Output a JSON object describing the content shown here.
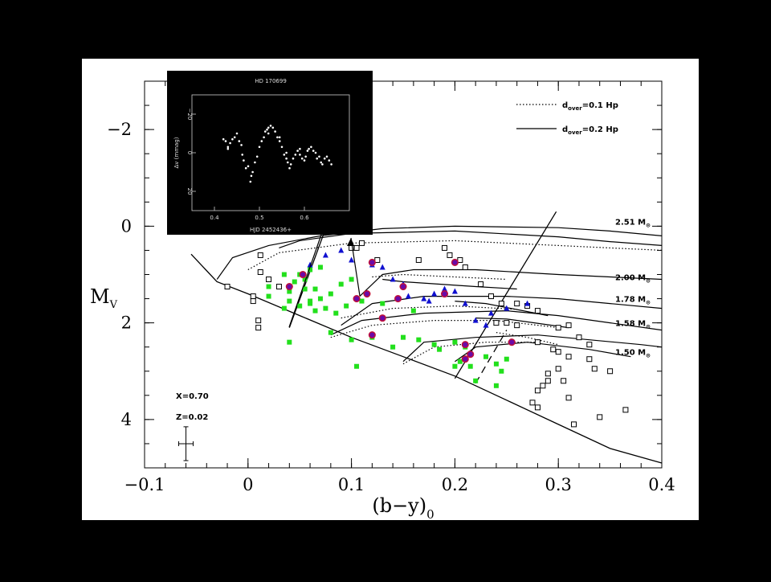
{
  "chart_data": {
    "type": "scatter",
    "xlabel": "(b−y)",
    "xlabel_sub": "0",
    "ylabel": "M",
    "ylabel_sub": "V",
    "xlim": [
      -0.1,
      0.4
    ],
    "ylim": [
      5,
      -3
    ],
    "xticks": [
      {
        "v": -0.1,
        "label": "−0.1"
      },
      {
        "v": 0,
        "label": "0"
      },
      {
        "v": 0.1,
        "label": "0.1"
      },
      {
        "v": 0.2,
        "label": "0.2"
      },
      {
        "v": 0.3,
        "label": "0.3"
      },
      {
        "v": 0.4,
        "label": "0.4"
      }
    ],
    "yticks": [
      {
        "v": -2,
        "label": "−2"
      },
      {
        "v": 0,
        "label": "0"
      },
      {
        "v": 2,
        "label": "2"
      },
      {
        "v": 4,
        "label": "4"
      }
    ],
    "legend": [
      {
        "style": "dotted",
        "label": "d",
        "sub": "over",
        "rest": "=0.1 Hp"
      },
      {
        "style": "solid",
        "label": "d",
        "sub": "over",
        "rest": "=0.2 Hp"
      }
    ],
    "annotations": {
      "X": "X=0.70",
      "Z": "Z=0.02",
      "errorbar": {
        "x": -0.06,
        "y": 4.5,
        "dx": 0.007,
        "dy": 0.35
      }
    },
    "track_labels": [
      {
        "x": 0.38,
        "y": -0.1,
        "mass": "2.51",
        "unit": "M",
        "sym": "⊙"
      },
      {
        "x": 0.38,
        "y": 1.05,
        "mass": "2.00",
        "unit": "M",
        "sym": "⊙"
      },
      {
        "x": 0.38,
        "y": 1.5,
        "mass": "1.78",
        "unit": "M",
        "sym": "⊙"
      },
      {
        "x": 0.38,
        "y": 2.0,
        "mass": "1.58",
        "unit": "M",
        "sym": "⊙"
      },
      {
        "x": 0.38,
        "y": 2.6,
        "mass": "1.50",
        "unit": "M",
        "sym": "⊙"
      }
    ],
    "zams_line": [
      [
        -0.055,
        0.58
      ],
      [
        -0.03,
        1.15
      ],
      [
        0.0,
        1.4
      ],
      [
        0.05,
        1.85
      ],
      [
        0.1,
        2.3
      ],
      [
        0.15,
        2.7
      ],
      [
        0.2,
        3.1
      ],
      [
        0.25,
        3.6
      ],
      [
        0.3,
        4.1
      ],
      [
        0.35,
        4.6
      ],
      [
        0.4,
        4.9
      ]
    ],
    "instability_strip": [
      {
        "points": [
          [
            0.04,
            2.1
          ],
          [
            0.075,
            0.05
          ]
        ],
        "style": "solid"
      },
      {
        "points": [
          [
            0.2,
            3.15
          ],
          [
            0.298,
            -0.3
          ]
        ],
        "style": "solid"
      },
      {
        "points": [
          [
            0.22,
            3.25
          ],
          [
            0.25,
            2.15
          ]
        ],
        "style": "dashed"
      }
    ],
    "tracks_solid": [
      [
        [
          -0.03,
          1.1
        ],
        [
          -0.015,
          0.65
        ],
        [
          0.02,
          0.4
        ],
        [
          0.07,
          0.2
        ],
        [
          0.13,
          0.05
        ],
        [
          0.2,
          0.0
        ],
        [
          0.3,
          0.03
        ],
        [
          0.35,
          0.1
        ],
        [
          0.4,
          0.2
        ]
      ],
      [
        [
          0.03,
          0.45
        ],
        [
          0.05,
          0.3
        ],
        [
          0.1,
          0.15
        ],
        [
          0.2,
          0.1
        ],
        [
          0.3,
          0.22
        ],
        [
          0.35,
          0.32
        ],
        [
          0.4,
          0.4
        ]
      ],
      [
        [
          0.108,
          1.45
        ],
        [
          0.13,
          1.0
        ],
        [
          0.16,
          0.9
        ],
        [
          0.22,
          0.9
        ],
        [
          0.3,
          1.0
        ],
        [
          0.35,
          1.05
        ],
        [
          0.4,
          1.1
        ]
      ],
      [
        [
          0.13,
          1.1
        ],
        [
          0.15,
          1.15
        ],
        [
          0.22,
          1.25
        ],
        [
          0.26,
          1.3
        ]
      ],
      [
        [
          0.09,
          2.05
        ],
        [
          0.12,
          1.6
        ],
        [
          0.17,
          1.45
        ],
        [
          0.25,
          1.45
        ],
        [
          0.3,
          1.5
        ],
        [
          0.35,
          1.6
        ],
        [
          0.4,
          1.7
        ]
      ],
      [
        [
          0.2,
          1.55
        ],
        [
          0.23,
          1.6
        ],
        [
          0.29,
          1.85
        ]
      ],
      [
        [
          0.08,
          2.25
        ],
        [
          0.11,
          1.95
        ],
        [
          0.17,
          1.8
        ],
        [
          0.25,
          1.75
        ],
        [
          0.3,
          1.85
        ],
        [
          0.35,
          2.0
        ],
        [
          0.4,
          2.15
        ]
      ],
      [
        [
          0.22,
          1.9
        ],
        [
          0.25,
          1.92
        ],
        [
          0.31,
          2.1
        ]
      ],
      [
        [
          0.15,
          2.8
        ],
        [
          0.17,
          2.4
        ],
        [
          0.22,
          2.3
        ],
        [
          0.28,
          2.25
        ],
        [
          0.33,
          2.35
        ],
        [
          0.38,
          2.45
        ],
        [
          0.4,
          2.5
        ]
      ],
      [
        [
          0.2,
          2.8
        ],
        [
          0.22,
          2.5
        ],
        [
          0.27,
          2.4
        ],
        [
          0.33,
          2.55
        ],
        [
          0.37,
          2.7
        ]
      ]
    ],
    "tracks_dotted": [
      [
        [
          0.0,
          0.9
        ],
        [
          0.03,
          0.55
        ],
        [
          0.1,
          0.35
        ],
        [
          0.2,
          0.3
        ],
        [
          0.3,
          0.4
        ],
        [
          0.4,
          0.5
        ]
      ],
      [
        [
          0.12,
          1.05
        ],
        [
          0.15,
          1.0
        ],
        [
          0.2,
          1.05
        ],
        [
          0.25,
          1.1
        ]
      ],
      [
        [
          0.09,
          1.9
        ],
        [
          0.14,
          1.7
        ],
        [
          0.2,
          1.65
        ],
        [
          0.26,
          1.72
        ]
      ],
      [
        [
          0.08,
          2.3
        ],
        [
          0.12,
          2.05
        ],
        [
          0.18,
          1.95
        ],
        [
          0.24,
          1.95
        ],
        [
          0.3,
          2.1
        ]
      ],
      [
        [
          0.15,
          2.85
        ],
        [
          0.18,
          2.5
        ],
        [
          0.23,
          2.4
        ],
        [
          0.28,
          2.4
        ]
      ],
      [
        [
          0.24,
          2.2
        ],
        [
          0.27,
          2.3
        ],
        [
          0.3,
          2.45
        ]
      ]
    ],
    "series": [
      {
        "marker": "open-square",
        "points": [
          [
            -0.02,
            1.25
          ],
          [
            0.005,
            1.45
          ],
          [
            0.005,
            1.55
          ],
          [
            0.01,
            1.95
          ],
          [
            0.01,
            2.1
          ],
          [
            0.012,
            0.95
          ],
          [
            0.02,
            1.1
          ],
          [
            0.03,
            1.25
          ],
          [
            0.012,
            0.6
          ],
          [
            0.1,
            0.45
          ],
          [
            0.105,
            0.45
          ],
          [
            0.11,
            0.35
          ],
          [
            0.125,
            0.7
          ],
          [
            0.165,
            0.7
          ],
          [
            0.19,
            0.45
          ],
          [
            0.195,
            0.6
          ],
          [
            0.205,
            0.7
          ],
          [
            0.21,
            0.85
          ],
          [
            0.225,
            1.2
          ],
          [
            0.235,
            1.45
          ],
          [
            0.245,
            1.6
          ],
          [
            0.26,
            1.6
          ],
          [
            0.27,
            1.65
          ],
          [
            0.28,
            1.75
          ],
          [
            0.24,
            2.0
          ],
          [
            0.25,
            2.0
          ],
          [
            0.28,
            2.4
          ],
          [
            0.295,
            2.55
          ],
          [
            0.3,
            2.1
          ],
          [
            0.31,
            2.05
          ],
          [
            0.31,
            2.7
          ],
          [
            0.3,
            2.95
          ],
          [
            0.29,
            3.05
          ],
          [
            0.29,
            3.2
          ],
          [
            0.285,
            3.3
          ],
          [
            0.305,
            3.2
          ],
          [
            0.31,
            3.55
          ],
          [
            0.275,
            3.65
          ],
          [
            0.28,
            3.75
          ],
          [
            0.32,
            2.3
          ],
          [
            0.33,
            2.45
          ],
          [
            0.33,
            2.75
          ],
          [
            0.335,
            2.95
          ],
          [
            0.35,
            3.0
          ],
          [
            0.34,
            3.95
          ],
          [
            0.315,
            4.1
          ],
          [
            0.365,
            3.8
          ],
          [
            0.3,
            2.6
          ],
          [
            0.28,
            3.4
          ],
          [
            0.26,
            2.05
          ]
        ]
      },
      {
        "marker": "green-square",
        "points": [
          [
            0.02,
            1.25
          ],
          [
            0.035,
            1.0
          ],
          [
            0.04,
            1.35
          ],
          [
            0.04,
            1.55
          ],
          [
            0.045,
            1.15
          ],
          [
            0.05,
            1.0
          ],
          [
            0.055,
            1.1
          ],
          [
            0.06,
            0.9
          ],
          [
            0.065,
            1.3
          ],
          [
            0.07,
            1.5
          ],
          [
            0.07,
            0.85
          ],
          [
            0.075,
            1.7
          ],
          [
            0.08,
            1.4
          ],
          [
            0.085,
            1.8
          ],
          [
            0.09,
            1.2
          ],
          [
            0.095,
            1.65
          ],
          [
            0.1,
            1.1
          ],
          [
            0.11,
            1.55
          ],
          [
            0.035,
            1.7
          ],
          [
            0.04,
            2.4
          ],
          [
            0.05,
            1.65
          ],
          [
            0.06,
            1.6
          ],
          [
            0.08,
            2.2
          ],
          [
            0.1,
            2.35
          ],
          [
            0.105,
            2.9
          ],
          [
            0.12,
            2.3
          ],
          [
            0.13,
            1.9
          ],
          [
            0.14,
            2.5
          ],
          [
            0.15,
            2.3
          ],
          [
            0.16,
            1.75
          ],
          [
            0.165,
            2.35
          ],
          [
            0.18,
            2.45
          ],
          [
            0.185,
            2.55
          ],
          [
            0.2,
            2.4
          ],
          [
            0.2,
            2.9
          ],
          [
            0.205,
            2.8
          ],
          [
            0.21,
            2.5
          ],
          [
            0.215,
            2.9
          ],
          [
            0.22,
            3.2
          ],
          [
            0.23,
            2.7
          ],
          [
            0.24,
            2.85
          ],
          [
            0.245,
            3.0
          ],
          [
            0.25,
            2.75
          ],
          [
            0.24,
            3.3
          ],
          [
            0.055,
            1.3
          ],
          [
            0.02,
            1.45
          ],
          [
            0.13,
            1.6
          ],
          [
            0.06,
            1.55
          ],
          [
            0.065,
            1.75
          ]
        ]
      },
      {
        "marker": "blue-triangle",
        "points": [
          [
            0.06,
            0.8
          ],
          [
            0.075,
            0.6
          ],
          [
            0.09,
            0.5
          ],
          [
            0.1,
            0.7
          ],
          [
            0.12,
            0.8
          ],
          [
            0.13,
            0.85
          ],
          [
            0.14,
            1.1
          ],
          [
            0.15,
            1.2
          ],
          [
            0.155,
            1.45
          ],
          [
            0.17,
            1.5
          ],
          [
            0.18,
            1.4
          ],
          [
            0.19,
            1.3
          ],
          [
            0.2,
            1.35
          ],
          [
            0.21,
            1.6
          ],
          [
            0.22,
            1.95
          ],
          [
            0.235,
            1.8
          ],
          [
            0.25,
            1.7
          ],
          [
            0.27,
            1.6
          ],
          [
            0.23,
            2.05
          ],
          [
            0.175,
            1.55
          ]
        ]
      },
      {
        "marker": "purple-circle",
        "points": [
          [
            0.04,
            1.25
          ],
          [
            0.12,
            0.75
          ],
          [
            0.2,
            0.75
          ],
          [
            0.105,
            1.5
          ],
          [
            0.115,
            1.4
          ],
          [
            0.145,
            1.5
          ],
          [
            0.15,
            1.25
          ],
          [
            0.19,
            1.4
          ],
          [
            0.13,
            1.9
          ],
          [
            0.12,
            2.25
          ],
          [
            0.21,
            2.45
          ],
          [
            0.21,
            2.75
          ],
          [
            0.215,
            2.65
          ],
          [
            0.255,
            2.4
          ],
          [
            0.053,
            1.0
          ]
        ]
      }
    ],
    "inset": {
      "title": "HD 170699",
      "xlabel": "HJD 2452436+",
      "ylabel": "Δv (mmag)",
      "xlim": [
        0.35,
        0.7
      ],
      "ylim": [
        30,
        -30
      ],
      "xticks": [
        {
          "v": 0.4,
          "label": "0.4"
        },
        {
          "v": 0.5,
          "label": "0.5"
        },
        {
          "v": 0.6,
          "label": "0.6"
        }
      ],
      "yticks": [
        {
          "v": -20,
          "label": "−20"
        },
        {
          "v": 0,
          "label": "0"
        },
        {
          "v": 20,
          "label": "20"
        }
      ],
      "points": [
        [
          0.42,
          -7
        ],
        [
          0.425,
          -6
        ],
        [
          0.43,
          -3
        ],
        [
          0.43,
          -2
        ],
        [
          0.435,
          -5
        ],
        [
          0.44,
          -7
        ],
        [
          0.445,
          -8
        ],
        [
          0.45,
          -10
        ],
        [
          0.455,
          -6
        ],
        [
          0.46,
          -4
        ],
        [
          0.462,
          1
        ],
        [
          0.465,
          4
        ],
        [
          0.47,
          8
        ],
        [
          0.475,
          7
        ],
        [
          0.48,
          15
        ],
        [
          0.482,
          12
        ],
        [
          0.485,
          10
        ],
        [
          0.49,
          5
        ],
        [
          0.495,
          2
        ],
        [
          0.5,
          -3
        ],
        [
          0.505,
          -6
        ],
        [
          0.51,
          -8
        ],
        [
          0.513,
          -11
        ],
        [
          0.517,
          -12
        ],
        [
          0.52,
          -13
        ],
        [
          0.525,
          -14
        ],
        [
          0.53,
          -13
        ],
        [
          0.535,
          -11
        ],
        [
          0.54,
          -8
        ],
        [
          0.545,
          -6
        ],
        [
          0.55,
          -3
        ],
        [
          0.555,
          1
        ],
        [
          0.56,
          3
        ],
        [
          0.563,
          5
        ],
        [
          0.567,
          8
        ],
        [
          0.57,
          6
        ],
        [
          0.575,
          3
        ],
        [
          0.58,
          1
        ],
        [
          0.585,
          -1
        ],
        [
          0.59,
          1
        ],
        [
          0.595,
          3
        ],
        [
          0.6,
          4
        ],
        [
          0.603,
          2
        ],
        [
          0.607,
          -1
        ],
        [
          0.61,
          -2
        ],
        [
          0.615,
          -3
        ],
        [
          0.62,
          -1
        ],
        [
          0.625,
          0
        ],
        [
          0.628,
          3
        ],
        [
          0.633,
          2
        ],
        [
          0.637,
          5
        ],
        [
          0.64,
          6
        ],
        [
          0.645,
          3
        ],
        [
          0.65,
          2
        ],
        [
          0.655,
          4
        ],
        [
          0.66,
          6
        ],
        [
          0.56,
          0
        ],
        [
          0.52,
          -10
        ],
        [
          0.545,
          -8
        ],
        [
          0.59,
          -2
        ]
      ]
    }
  }
}
